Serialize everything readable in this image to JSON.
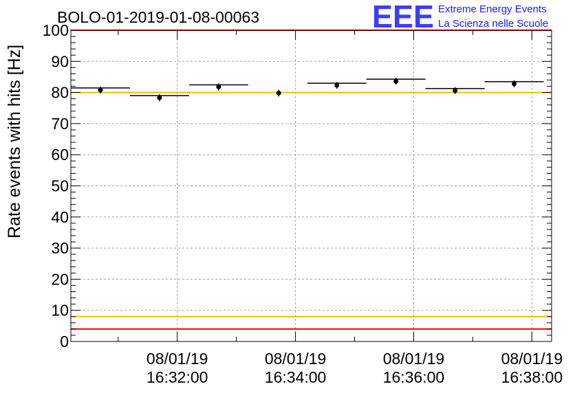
{
  "chart_data": {
    "type": "scatter",
    "title": "BOLO-01-2019-01-08-00063",
    "ylabel": "Rate events with hits [Hz]",
    "xlabel": "",
    "ylim": [
      0,
      100
    ],
    "y_ticks": [
      "0",
      "10",
      "20",
      "30",
      "40",
      "50",
      "60",
      "70",
      "80",
      "90",
      "100"
    ],
    "x_range": [
      "2019-01-08 16:30:12",
      "2019-01-08 16:38:20"
    ],
    "x_ticks": [
      {
        "time": "2019-01-08 16:32:00",
        "date_label": "08/01/19",
        "time_label": "16:32:00"
      },
      {
        "time": "2019-01-08 16:34:00",
        "date_label": "08/01/19",
        "time_label": "16:34:00"
      },
      {
        "time": "2019-01-08 16:36:00",
        "date_label": "08/01/19",
        "time_label": "16:36:00"
      },
      {
        "time": "2019-01-08 16:38:00",
        "date_label": "08/01/19",
        "time_label": "16:38:00"
      }
    ],
    "grid": true,
    "points": [
      {
        "x_start": "2019-01-08 16:30:12",
        "x_end": "2019-01-08 16:31:12",
        "y": 80.8
      },
      {
        "x_start": "2019-01-08 16:31:12",
        "x_end": "2019-01-08 16:32:12",
        "y": 78.3
      },
      {
        "x_start": "2019-01-08 16:32:12",
        "x_end": "2019-01-08 16:33:12",
        "y": 81.8
      },
      {
        "x_start": "2019-01-08 16:33:43",
        "x_end": "2019-01-08 16:33:43",
        "y": 79.8
      },
      {
        "x_start": "2019-01-08 16:34:12",
        "x_end": "2019-01-08 16:35:12",
        "y": 82.3
      },
      {
        "x_start": "2019-01-08 16:35:12",
        "x_end": "2019-01-08 16:36:12",
        "y": 83.6
      },
      {
        "x_start": "2019-01-08 16:36:12",
        "x_end": "2019-01-08 16:37:12",
        "y": 80.6
      },
      {
        "x_start": "2019-01-08 16:37:12",
        "x_end": "2019-01-08 16:38:12",
        "y": 82.8
      }
    ],
    "reference_lines": [
      {
        "y": 100,
        "color": "#ff0000"
      },
      {
        "y": 80,
        "color": "#f0c000"
      },
      {
        "y": 8,
        "color": "#f0c000"
      },
      {
        "y": 4,
        "color": "#ff0000"
      }
    ],
    "marker_color": "#000000"
  },
  "logo": {
    "letters": "EEE",
    "line1": "Extreme Energy Events",
    "line2": "La Scienza nelle Scuole",
    "color": "#1a1aff"
  }
}
